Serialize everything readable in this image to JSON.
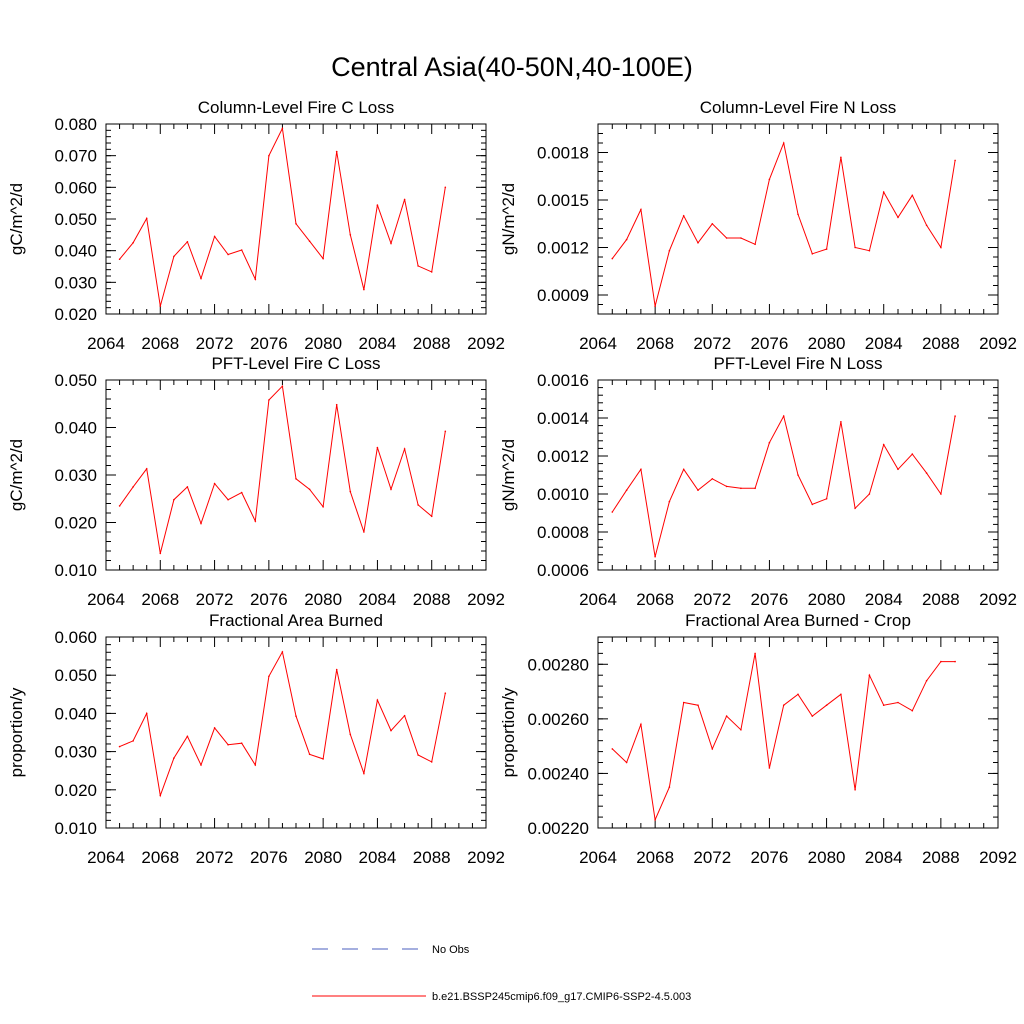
{
  "page_title": "Central Asia(40-50N,40-100E)",
  "x_ticks": [
    "2064",
    "2068",
    "2072",
    "2076",
    "2080",
    "2084",
    "2088",
    "2092"
  ],
  "series_color": "#ff0000",
  "obs_color": "#4b5fbf",
  "legend": {
    "obs_label": "No Obs",
    "model_label": "b.e21.BSSP245cmip6.f09_g17.CMIP6-SSP2-4.5.003"
  },
  "chart_data": [
    {
      "type": "line",
      "title": "Column-Level Fire C Loss",
      "xlabel": "",
      "ylabel": "gC/m^2/d",
      "xlim": [
        2064,
        2092
      ],
      "ylim": [
        0.02,
        0.08
      ],
      "yticks": [
        "0.020",
        "0.030",
        "0.040",
        "0.050",
        "0.060",
        "0.070",
        "0.080"
      ],
      "grid": false,
      "x": [
        2065,
        2066,
        2067,
        2068,
        2069,
        2070,
        2071,
        2072,
        2073,
        2074,
        2075,
        2076,
        2077,
        2078,
        2079,
        2080,
        2081,
        2082,
        2083,
        2084,
        2085,
        2086,
        2087,
        2088,
        2089
      ],
      "series": [
        {
          "values": [
            0.0373,
            0.0425,
            0.0502,
            0.0225,
            0.0382,
            0.0428,
            0.0312,
            0.0445,
            0.0388,
            0.0402,
            0.031,
            0.07,
            0.0786,
            0.0485,
            0.043,
            0.0375,
            0.0713,
            0.045,
            0.0277,
            0.0544,
            0.0423,
            0.0562,
            0.0352,
            0.0333,
            0.06
          ]
        }
      ]
    },
    {
      "type": "line",
      "title": "Column-Level Fire N Loss",
      "xlabel": "",
      "ylabel": "gN/m^2/d",
      "xlim": [
        2064,
        2092
      ],
      "ylim": [
        0.00078,
        0.00198
      ],
      "yticks": [
        "0.0009",
        "0.0012",
        "0.0015",
        "0.0018"
      ],
      "grid": false,
      "x": [
        2065,
        2066,
        2067,
        2068,
        2069,
        2070,
        2071,
        2072,
        2073,
        2074,
        2075,
        2076,
        2077,
        2078,
        2079,
        2080,
        2081,
        2082,
        2083,
        2084,
        2085,
        2086,
        2087,
        2088,
        2089
      ],
      "series": [
        {
          "values": [
            0.00113,
            0.00125,
            0.00144,
            0.00083,
            0.00118,
            0.0014,
            0.00123,
            0.00135,
            0.00126,
            0.00126,
            0.00122,
            0.00163,
            0.00186,
            0.00141,
            0.00116,
            0.00119,
            0.00177,
            0.0012,
            0.00118,
            0.00155,
            0.00139,
            0.00153,
            0.00134,
            0.0012,
            0.00175
          ]
        }
      ]
    },
    {
      "type": "line",
      "title": "PFT-Level Fire C Loss",
      "xlabel": "",
      "ylabel": "gC/m^2/d",
      "xlim": [
        2064,
        2092
      ],
      "ylim": [
        0.01,
        0.05
      ],
      "yticks": [
        "0.010",
        "0.020",
        "0.030",
        "0.040",
        "0.050"
      ],
      "grid": false,
      "x": [
        2065,
        2066,
        2067,
        2068,
        2069,
        2070,
        2071,
        2072,
        2073,
        2074,
        2075,
        2076,
        2077,
        2078,
        2079,
        2080,
        2081,
        2082,
        2083,
        2084,
        2085,
        2086,
        2087,
        2088,
        2089
      ],
      "series": [
        {
          "values": [
            0.0235,
            0.0275,
            0.0313,
            0.0135,
            0.0248,
            0.0275,
            0.0198,
            0.0282,
            0.0248,
            0.0263,
            0.0203,
            0.0458,
            0.0487,
            0.0292,
            0.027,
            0.0233,
            0.0448,
            0.0265,
            0.018,
            0.0358,
            0.027,
            0.0355,
            0.0237,
            0.0213,
            0.0392
          ]
        }
      ]
    },
    {
      "type": "line",
      "title": "PFT-Level Fire N Loss",
      "xlabel": "",
      "ylabel": "gN/m^2/d",
      "xlim": [
        2064,
        2092
      ],
      "ylim": [
        0.0006,
        0.0016
      ],
      "yticks": [
        "0.0006",
        "0.0008",
        "0.0010",
        "0.0012",
        "0.0014",
        "0.0016"
      ],
      "grid": false,
      "x": [
        2065,
        2066,
        2067,
        2068,
        2069,
        2070,
        2071,
        2072,
        2073,
        2074,
        2075,
        2076,
        2077,
        2078,
        2079,
        2080,
        2081,
        2082,
        2083,
        2084,
        2085,
        2086,
        2087,
        2088,
        2089
      ],
      "series": [
        {
          "values": [
            0.000905,
            0.00102,
            0.00113,
            0.00067,
            0.00096,
            0.00113,
            0.00102,
            0.00108,
            0.00104,
            0.00103,
            0.00103,
            0.00127,
            0.00141,
            0.0011,
            0.000945,
            0.000975,
            0.00138,
            0.000925,
            0.001,
            0.00126,
            0.00113,
            0.00121,
            0.00111,
            0.001,
            0.00141
          ]
        }
      ]
    },
    {
      "type": "line",
      "title": "Fractional Area Burned",
      "xlabel": "",
      "ylabel": "proportion/y",
      "xlim": [
        2064,
        2092
      ],
      "ylim": [
        0.01,
        0.06
      ],
      "yticks": [
        "0.010",
        "0.020",
        "0.030",
        "0.040",
        "0.050",
        "0.060"
      ],
      "grid": false,
      "x": [
        2065,
        2066,
        2067,
        2068,
        2069,
        2070,
        2071,
        2072,
        2073,
        2074,
        2075,
        2076,
        2077,
        2078,
        2079,
        2080,
        2081,
        2082,
        2083,
        2084,
        2085,
        2086,
        2087,
        2088,
        2089
      ],
      "series": [
        {
          "values": [
            0.0313,
            0.0328,
            0.04,
            0.0185,
            0.0283,
            0.034,
            0.0265,
            0.0362,
            0.0318,
            0.0322,
            0.0265,
            0.0497,
            0.0561,
            0.0393,
            0.0293,
            0.0281,
            0.0515,
            0.0345,
            0.0243,
            0.0435,
            0.0355,
            0.0394,
            0.0291,
            0.0273,
            0.0453
          ]
        }
      ]
    },
    {
      "type": "line",
      "title": "Fractional Area Burned - Crop",
      "xlabel": "",
      "ylabel": "proportion/y",
      "xlim": [
        2064,
        2092
      ],
      "ylim": [
        0.0022,
        0.0029
      ],
      "yticks": [
        "0.00220",
        "0.00240",
        "0.00260",
        "0.00280"
      ],
      "grid": false,
      "x": [
        2065,
        2066,
        2067,
        2068,
        2069,
        2070,
        2071,
        2072,
        2073,
        2074,
        2075,
        2076,
        2077,
        2078,
        2079,
        2080,
        2081,
        2082,
        2083,
        2084,
        2085,
        2086,
        2087,
        2088,
        2089
      ],
      "series": [
        {
          "values": [
            0.00249,
            0.00244,
            0.00258,
            0.00223,
            0.00235,
            0.00266,
            0.00265,
            0.00249,
            0.00261,
            0.00256,
            0.00284,
            0.00242,
            0.00265,
            0.00269,
            0.00261,
            0.00265,
            0.00269,
            0.00234,
            0.00276,
            0.00265,
            0.00266,
            0.00263,
            0.00274,
            0.00281,
            0.00281
          ]
        }
      ]
    }
  ]
}
